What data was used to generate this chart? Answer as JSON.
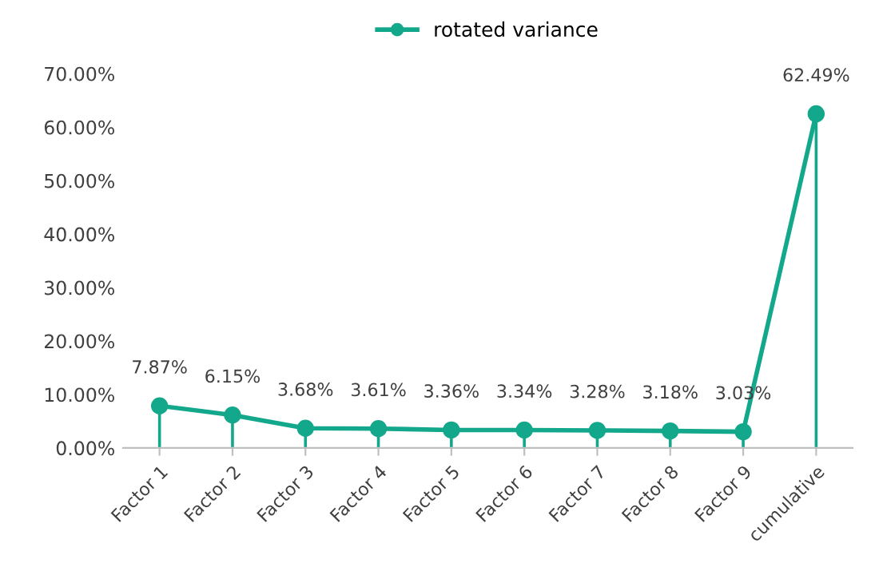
{
  "chart_data": {
    "type": "line",
    "categories": [
      "Factor 1",
      "Factor 2",
      "Factor 3",
      "Factor 4",
      "Factor 5",
      "Factor 6",
      "Factor 7",
      "Factor 8",
      "Factor 9",
      "cumulative"
    ],
    "series": [
      {
        "name": "rotated variance",
        "color": "#13a88b",
        "marker": "none",
        "values": [
          7.87,
          6.15,
          3.68,
          3.61,
          3.36,
          3.34,
          3.28,
          3.18,
          3.03,
          62.49
        ]
      },
      {
        "type": "lollipop",
        "color": "#13a88b",
        "marker": "circle",
        "values": [
          7.87,
          6.15,
          3.68,
          3.61,
          3.36,
          3.34,
          3.28,
          3.18,
          3.03,
          62.49
        ],
        "value_labels": [
          "7.87%",
          "6.15%",
          "3.68%",
          "3.61%",
          "3.36%",
          "3.34%",
          "3.28%",
          "3.18%",
          "3.03%",
          "62.49%"
        ]
      }
    ],
    "ylim": [
      0,
      70
    ],
    "yticks": [
      {
        "value": 0,
        "label": "0.00%"
      },
      {
        "value": 10,
        "label": "10.00%"
      },
      {
        "value": 20,
        "label": "20.00%"
      },
      {
        "value": 30,
        "label": "30.00%"
      },
      {
        "value": 40,
        "label": "40.00%"
      },
      {
        "value": 50,
        "label": "50.00%"
      },
      {
        "value": 60,
        "label": "60.00%"
      },
      {
        "value": 70,
        "label": "70.00%"
      }
    ],
    "legend": "top",
    "grid": false
  }
}
